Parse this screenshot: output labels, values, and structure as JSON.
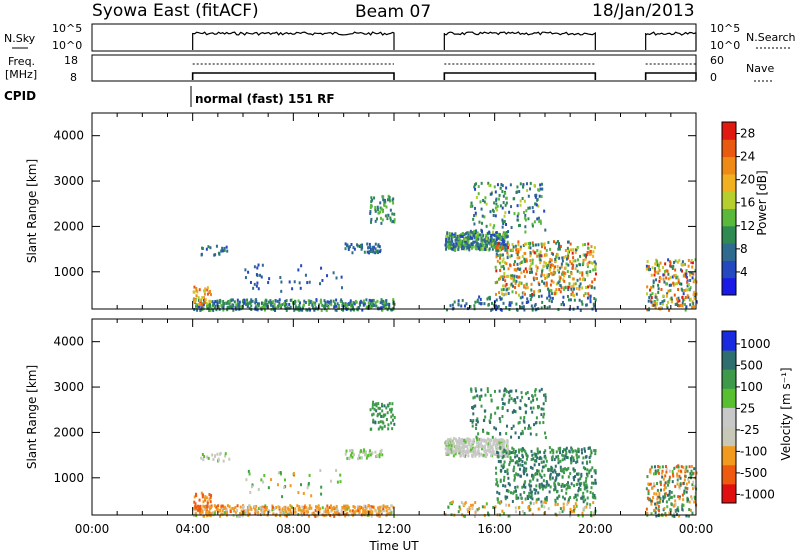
{
  "header": {
    "station": "Syowa East (fitACF)",
    "beam": "Beam 07",
    "date": "18/Jan/2013"
  },
  "top_panels": {
    "nsky_label": "N.Sky",
    "nsky_ticks": [
      "10^5",
      "10^0"
    ],
    "nsearch_label": "N.Search",
    "nsearch_ticks": [
      "10^5",
      "10^0"
    ],
    "freq_label_1": "Freq.",
    "freq_label_2": "[MHz]",
    "freq_ticks": [
      "18",
      "8"
    ],
    "nave_label": "Nave",
    "nave_ticks": [
      "60",
      "0"
    ],
    "cpid_label": "CPID",
    "cpid_text": "normal (fast) 151 RF"
  },
  "colors": {
    "power_scale": [
      "#1a1ae6",
      "#2448c0",
      "#2f6b8e",
      "#2f8a52",
      "#5ab93a",
      "#b7cf2e",
      "#f0b020",
      "#f08a16",
      "#e85a10",
      "#e01a10"
    ],
    "velocity_scale": [
      "#e01010",
      "#ee5a10",
      "#f29a20",
      "#c8c8b8",
      "#c8c8c8",
      "#58c030",
      "#3e9a4a",
      "#2f6e6e",
      "#1a2ae0"
    ]
  },
  "chart_data": [
    {
      "type": "heatmap",
      "title": "",
      "xlabel": "",
      "ylabel": "Slant Range [km]",
      "x_unit": "hours UT",
      "xlim": [
        0,
        24
      ],
      "ylim": [
        180,
        4500
      ],
      "x_tick_labels": [
        "00:00",
        "04:00",
        "08:00",
        "12:00",
        "16:00",
        "20:00",
        "00:00"
      ],
      "y_tick_labels": [
        "1000",
        "2000",
        "3000",
        "4000"
      ],
      "colorbar": {
        "label": "Power [dB]",
        "ticks": [
          "4",
          "8",
          "12",
          "16",
          "20",
          "24",
          "28"
        ],
        "range": [
          0,
          30
        ]
      },
      "data_windows_ut": [
        [
          4,
          12
        ],
        [
          14,
          20
        ],
        [
          22,
          24
        ]
      ]
    },
    {
      "type": "heatmap",
      "title": "",
      "xlabel": "Time UT",
      "ylabel": "Slant Range [km]",
      "x_unit": "hours UT",
      "xlim": [
        0,
        24
      ],
      "ylim": [
        180,
        4500
      ],
      "x_tick_labels": [
        "00:00",
        "04:00",
        "08:00",
        "12:00",
        "16:00",
        "20:00",
        "00:00"
      ],
      "y_tick_labels": [
        "1000",
        "2000",
        "3000",
        "4000"
      ],
      "colorbar": {
        "label": "Velocity [m s⁻¹]",
        "ticks": [
          "1000",
          "500",
          "100",
          "25",
          "-25",
          "-100",
          "-500",
          "-1000"
        ],
        "range": [
          -1000,
          1000
        ]
      },
      "data_windows_ut": [
        [
          4,
          12
        ],
        [
          14,
          20
        ],
        [
          22,
          24
        ]
      ]
    }
  ]
}
